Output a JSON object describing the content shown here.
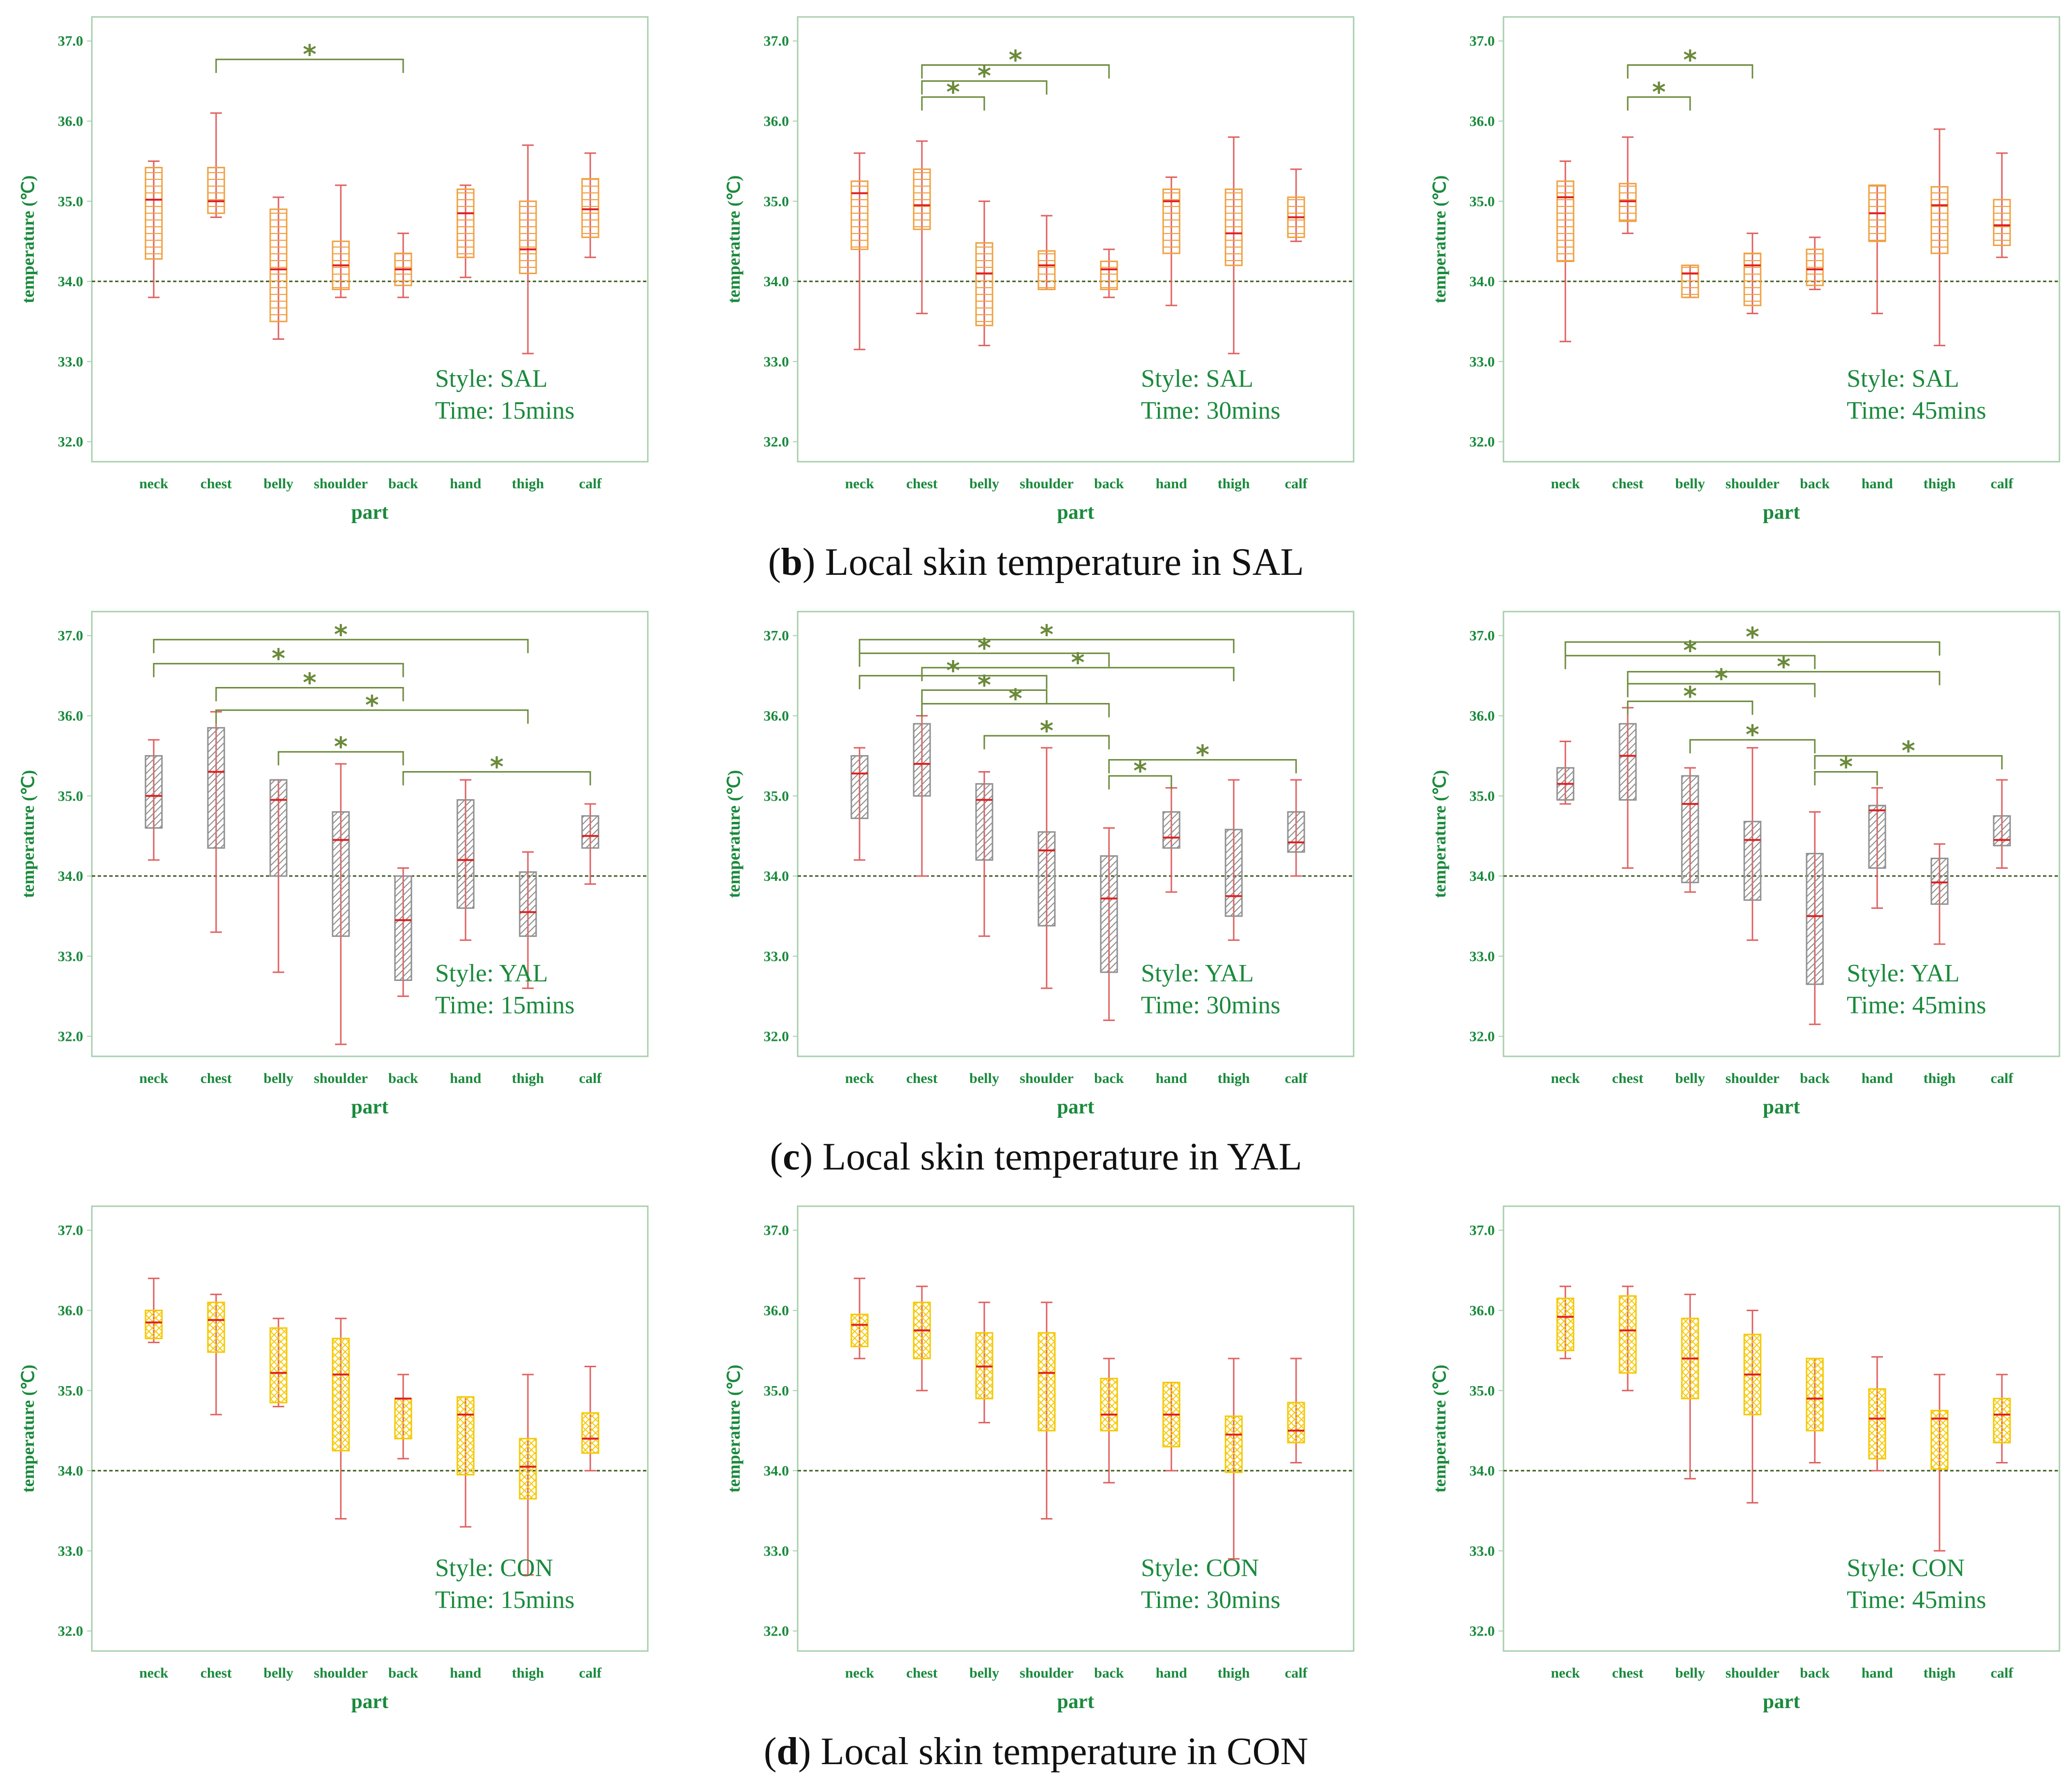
{
  "colors": {
    "frame": "#a8cfae",
    "text": "#1a8a3c",
    "median": "#e02020",
    "whisker": "#e06060",
    "ref": "#3a5a1a",
    "bracket": "#6a8a3a",
    "SAL": "#f0a040",
    "YAL": "#909090",
    "CON": "#f5c800"
  },
  "captions": [
    {
      "letter": "b",
      "text": "Local skin temperature in SAL"
    },
    {
      "letter": "c",
      "text": "Local skin temperature in YAL"
    },
    {
      "letter": "d",
      "text": "Local skin temperature in CON"
    }
  ],
  "chart_data": [
    {
      "id": "sal15",
      "type": "box",
      "style": "SAL",
      "time": "15mins",
      "style_label": "Style:  SAL",
      "time_label": "Time:  15mins",
      "xlabel": "part",
      "ylabel": "temperature (℃)",
      "ylim": [
        31.75,
        37.3
      ],
      "yticks": [
        "37.0",
        "36.0",
        "35.0",
        "34.0",
        "33.0",
        "32.0"
      ],
      "ref_line": 34.0,
      "categories": [
        "neck",
        "chest",
        "belly",
        "shoulder",
        "back",
        "hand",
        "thigh",
        "calf"
      ],
      "boxes": [
        [
          33.8,
          34.28,
          35.02,
          35.42,
          35.5
        ],
        [
          34.8,
          34.85,
          35.0,
          35.42,
          36.1
        ],
        [
          33.28,
          33.5,
          34.15,
          34.9,
          35.05
        ],
        [
          33.8,
          33.9,
          34.2,
          34.5,
          35.2
        ],
        [
          33.8,
          33.95,
          34.15,
          34.35,
          34.6
        ],
        [
          34.05,
          34.3,
          34.85,
          35.15,
          35.2
        ],
        [
          33.1,
          34.1,
          34.4,
          35.0,
          35.7
        ],
        [
          34.3,
          34.55,
          34.9,
          35.28,
          35.6
        ]
      ],
      "brackets": [
        {
          "from": 1,
          "to": 4,
          "level": 36.77,
          "label": "*"
        }
      ]
    },
    {
      "id": "sal30",
      "type": "box",
      "style": "SAL",
      "time": "30mins",
      "style_label": "Style:  SAL",
      "time_label": "Time:  30mins",
      "xlabel": "part",
      "ylabel": "temperature (℃)",
      "ylim": [
        31.75,
        37.3
      ],
      "yticks": [
        "37.0",
        "36.0",
        "35.0",
        "34.0",
        "33.0",
        "32.0"
      ],
      "ref_line": 34.0,
      "categories": [
        "neck",
        "chest",
        "belly",
        "shoulder",
        "back",
        "hand",
        "thigh",
        "calf"
      ],
      "boxes": [
        [
          33.15,
          34.4,
          35.1,
          35.25,
          35.6
        ],
        [
          33.6,
          34.65,
          34.95,
          35.4,
          35.75
        ],
        [
          33.2,
          33.45,
          34.1,
          34.48,
          35.0
        ],
        [
          33.9,
          33.9,
          34.2,
          34.38,
          34.82
        ],
        [
          33.8,
          33.9,
          34.15,
          34.25,
          34.4
        ],
        [
          33.7,
          34.35,
          35.0,
          35.15,
          35.3
        ],
        [
          33.1,
          34.2,
          34.6,
          35.15,
          35.8
        ],
        [
          34.5,
          34.55,
          34.8,
          35.05,
          35.4
        ]
      ],
      "brackets": [
        {
          "from": 1,
          "to": 2,
          "level": 36.3,
          "label": "*"
        },
        {
          "from": 1,
          "to": 3,
          "level": 36.5,
          "label": "*"
        },
        {
          "from": 1,
          "to": 4,
          "level": 36.7,
          "label": "*"
        }
      ]
    },
    {
      "id": "sal45",
      "type": "box",
      "style": "SAL",
      "time": "45mins",
      "style_label": "Style:  SAL",
      "time_label": "Time:  45mins",
      "xlabel": "part",
      "ylabel": "temperature (℃)",
      "ylim": [
        31.75,
        37.3
      ],
      "yticks": [
        "37.0",
        "36.0",
        "35.0",
        "34.0",
        "33.0",
        "32.0"
      ],
      "ref_line": 34.0,
      "categories": [
        "neck",
        "chest",
        "belly",
        "shoulder",
        "back",
        "hand",
        "thigh",
        "calf"
      ],
      "boxes": [
        [
          33.25,
          34.25,
          35.05,
          35.25,
          35.5
        ],
        [
          34.6,
          34.75,
          35.0,
          35.22,
          35.8
        ],
        [
          33.8,
          33.8,
          34.1,
          34.2,
          34.2
        ],
        [
          33.6,
          33.7,
          34.2,
          34.35,
          34.6
        ],
        [
          33.9,
          33.95,
          34.15,
          34.4,
          34.55
        ],
        [
          33.6,
          34.5,
          34.85,
          35.2,
          35.2
        ],
        [
          33.2,
          34.35,
          34.95,
          35.18,
          35.9
        ],
        [
          34.3,
          34.45,
          34.7,
          35.02,
          35.6
        ]
      ],
      "brackets": [
        {
          "from": 1,
          "to": 2,
          "level": 36.3,
          "label": "*"
        },
        {
          "from": 1,
          "to": 3,
          "level": 36.7,
          "label": "*"
        }
      ]
    },
    {
      "id": "yal15",
      "type": "box",
      "style": "YAL",
      "time": "15mins",
      "style_label": "Style:  YAL",
      "time_label": "Time:  15mins",
      "xlabel": "part",
      "ylabel": "temperature (℃)",
      "ylim": [
        31.75,
        37.3
      ],
      "yticks": [
        "37.0",
        "36.0",
        "35.0",
        "34.0",
        "33.0",
        "32.0"
      ],
      "ref_line": 34.0,
      "categories": [
        "neck",
        "chest",
        "belly",
        "shoulder",
        "back",
        "hand",
        "thigh",
        "calf"
      ],
      "boxes": [
        [
          34.2,
          34.6,
          35.0,
          35.5,
          35.7
        ],
        [
          33.3,
          34.35,
          35.3,
          35.85,
          36.05
        ],
        [
          32.8,
          34.0,
          34.95,
          35.2,
          35.2
        ],
        [
          31.9,
          33.25,
          34.45,
          34.8,
          35.4
        ],
        [
          32.5,
          32.7,
          33.45,
          34.0,
          34.1
        ],
        [
          33.2,
          33.6,
          34.2,
          34.95,
          35.2
        ],
        [
          32.6,
          33.25,
          33.55,
          34.05,
          34.3
        ],
        [
          33.9,
          34.35,
          34.5,
          34.75,
          34.9
        ]
      ],
      "brackets": [
        {
          "from": 0,
          "to": 6,
          "level": 36.95,
          "label": "*"
        },
        {
          "from": 0,
          "to": 4,
          "level": 36.65,
          "label": "*"
        },
        {
          "from": 1,
          "to": 4,
          "level": 36.35,
          "label": "*"
        },
        {
          "from": 1,
          "to": 6,
          "level": 36.07,
          "label": "*"
        },
        {
          "from": 2,
          "to": 4,
          "level": 35.55,
          "label": "*"
        },
        {
          "from": 4,
          "to": 7,
          "level": 35.3,
          "label": "*"
        }
      ]
    },
    {
      "id": "yal30",
      "type": "box",
      "style": "YAL",
      "time": "30mins",
      "style_label": "Style:  YAL",
      "time_label": "Time:  30mins",
      "xlabel": "part",
      "ylabel": "temperature (℃)",
      "ylim": [
        31.75,
        37.3
      ],
      "yticks": [
        "37.0",
        "36.0",
        "35.0",
        "34.0",
        "33.0",
        "32.0"
      ],
      "ref_line": 34.0,
      "categories": [
        "neck",
        "chest",
        "belly",
        "shoulder",
        "back",
        "hand",
        "thigh",
        "calf"
      ],
      "boxes": [
        [
          34.2,
          34.72,
          35.28,
          35.5,
          35.6
        ],
        [
          34.0,
          35.0,
          35.4,
          35.9,
          36.0
        ],
        [
          33.25,
          34.2,
          34.95,
          35.15,
          35.3
        ],
        [
          32.6,
          33.38,
          34.32,
          34.55,
          35.6
        ],
        [
          32.2,
          32.8,
          33.72,
          34.25,
          34.6
        ],
        [
          33.8,
          34.35,
          34.48,
          34.8,
          35.1
        ],
        [
          33.2,
          33.5,
          33.75,
          34.58,
          35.2
        ],
        [
          34.0,
          34.3,
          34.42,
          34.8,
          35.2
        ]
      ],
      "brackets": [
        {
          "from": 0,
          "to": 6,
          "level": 36.95,
          "label": "*"
        },
        {
          "from": 0,
          "to": 4,
          "level": 36.78,
          "label": "*"
        },
        {
          "from": 1,
          "to": 6,
          "level": 36.6,
          "label": "*"
        },
        {
          "from": 0,
          "to": 3,
          "level": 36.5,
          "label": "*"
        },
        {
          "from": 1,
          "to": 3,
          "level": 36.32,
          "label": "*"
        },
        {
          "from": 1,
          "to": 4,
          "level": 36.15,
          "label": "*"
        },
        {
          "from": 2,
          "to": 4,
          "level": 35.75,
          "label": "*"
        },
        {
          "from": 4,
          "to": 5,
          "level": 35.25,
          "label": "*"
        },
        {
          "from": 4,
          "to": 7,
          "level": 35.45,
          "label": "*"
        }
      ]
    },
    {
      "id": "yal45",
      "type": "box",
      "style": "YAL",
      "time": "45mins",
      "style_label": "Style:  YAL",
      "time_label": "Time:  45mins",
      "xlabel": "part",
      "ylabel": "temperature (℃)",
      "ylim": [
        31.75,
        37.3
      ],
      "yticks": [
        "37.0",
        "36.0",
        "35.0",
        "34.0",
        "33.0",
        "32.0"
      ],
      "ref_line": 34.0,
      "categories": [
        "neck",
        "chest",
        "belly",
        "shoulder",
        "back",
        "hand",
        "thigh",
        "calf"
      ],
      "boxes": [
        [
          34.9,
          34.95,
          35.15,
          35.35,
          35.68
        ],
        [
          34.1,
          34.95,
          35.5,
          35.9,
          36.1
        ],
        [
          33.8,
          33.92,
          34.9,
          35.25,
          35.35
        ],
        [
          33.2,
          33.7,
          34.45,
          34.68,
          35.6
        ],
        [
          32.15,
          32.65,
          33.5,
          34.28,
          34.8
        ],
        [
          33.6,
          34.1,
          34.82,
          34.88,
          35.1
        ],
        [
          33.15,
          33.65,
          33.92,
          34.22,
          34.4
        ],
        [
          34.1,
          34.38,
          34.45,
          34.75,
          35.2
        ]
      ],
      "brackets": [
        {
          "from": 0,
          "to": 6,
          "level": 36.92,
          "label": "*"
        },
        {
          "from": 0,
          "to": 4,
          "level": 36.75,
          "label": "*"
        },
        {
          "from": 1,
          "to": 6,
          "level": 36.55,
          "label": "*"
        },
        {
          "from": 1,
          "to": 4,
          "level": 36.4,
          "label": "*"
        },
        {
          "from": 1,
          "to": 3,
          "level": 36.18,
          "label": "*"
        },
        {
          "from": 2,
          "to": 4,
          "level": 35.7,
          "label": "*"
        },
        {
          "from": 4,
          "to": 5,
          "level": 35.3,
          "label": "*"
        },
        {
          "from": 4,
          "to": 7,
          "level": 35.5,
          "label": "*"
        }
      ]
    },
    {
      "id": "con15",
      "type": "box",
      "style": "CON",
      "time": "15mins",
      "style_label": "Style:  CON",
      "time_label": "Time:  15mins",
      "xlabel": "part",
      "ylabel": "temperature (℃)",
      "ylim": [
        31.75,
        37.3
      ],
      "yticks": [
        "37.0",
        "36.0",
        "35.0",
        "34.0",
        "33.0",
        "32.0"
      ],
      "ref_line": 34.0,
      "categories": [
        "neck",
        "chest",
        "belly",
        "shoulder",
        "back",
        "hand",
        "thigh",
        "calf"
      ],
      "boxes": [
        [
          35.6,
          35.65,
          35.85,
          36.0,
          36.4
        ],
        [
          34.7,
          35.48,
          35.88,
          36.1,
          36.2
        ],
        [
          34.8,
          34.85,
          35.22,
          35.78,
          35.9
        ],
        [
          33.4,
          34.25,
          35.2,
          35.65,
          35.9
        ],
        [
          34.15,
          34.4,
          34.9,
          34.9,
          35.2
        ],
        [
          33.3,
          33.95,
          34.7,
          34.92,
          34.92
        ],
        [
          32.7,
          33.65,
          34.05,
          34.4,
          35.2
        ],
        [
          34.0,
          34.22,
          34.4,
          34.72,
          35.3
        ]
      ],
      "brackets": []
    },
    {
      "id": "con30",
      "type": "box",
      "style": "CON",
      "time": "30mins",
      "style_label": "Style:  CON",
      "time_label": "Time:  30mins",
      "xlabel": "part",
      "ylabel": "temperature (℃)",
      "ylim": [
        31.75,
        37.3
      ],
      "yticks": [
        "37.0",
        "36.0",
        "35.0",
        "34.0",
        "33.0",
        "32.0"
      ],
      "ref_line": 34.0,
      "categories": [
        "neck",
        "chest",
        "belly",
        "shoulder",
        "back",
        "hand",
        "thigh",
        "calf"
      ],
      "boxes": [
        [
          35.4,
          35.55,
          35.82,
          35.95,
          36.4
        ],
        [
          35.0,
          35.4,
          35.75,
          36.1,
          36.3
        ],
        [
          34.6,
          34.9,
          35.3,
          35.72,
          36.1
        ],
        [
          33.4,
          34.5,
          35.22,
          35.72,
          36.1
        ],
        [
          33.85,
          34.5,
          34.7,
          35.15,
          35.4
        ],
        [
          34.0,
          34.3,
          34.7,
          35.1,
          35.1
        ],
        [
          32.9,
          33.98,
          34.45,
          34.68,
          35.4
        ],
        [
          34.1,
          34.35,
          34.5,
          34.85,
          35.4
        ]
      ],
      "brackets": []
    },
    {
      "id": "con45",
      "type": "box",
      "style": "CON",
      "time": "45mins",
      "style_label": "Style:  CON",
      "time_label": "Time:  45mins",
      "xlabel": "part",
      "ylabel": "temperature (℃)",
      "ylim": [
        31.75,
        37.3
      ],
      "yticks": [
        "37.0",
        "36.0",
        "35.0",
        "34.0",
        "33.0",
        "32.0"
      ],
      "ref_line": 34.0,
      "categories": [
        "neck",
        "chest",
        "belly",
        "shoulder",
        "back",
        "hand",
        "thigh",
        "calf"
      ],
      "boxes": [
        [
          35.4,
          35.5,
          35.92,
          36.15,
          36.3
        ],
        [
          35.0,
          35.22,
          35.75,
          36.18,
          36.3
        ],
        [
          33.9,
          34.9,
          35.4,
          35.9,
          36.2
        ],
        [
          33.6,
          34.7,
          35.2,
          35.7,
          36.0
        ],
        [
          34.1,
          34.5,
          34.9,
          35.4,
          35.4
        ],
        [
          34.0,
          34.15,
          34.65,
          35.02,
          35.42
        ],
        [
          33.0,
          34.02,
          34.65,
          34.75,
          35.2
        ],
        [
          34.1,
          34.35,
          34.7,
          34.9,
          35.2
        ]
      ],
      "brackets": []
    }
  ]
}
